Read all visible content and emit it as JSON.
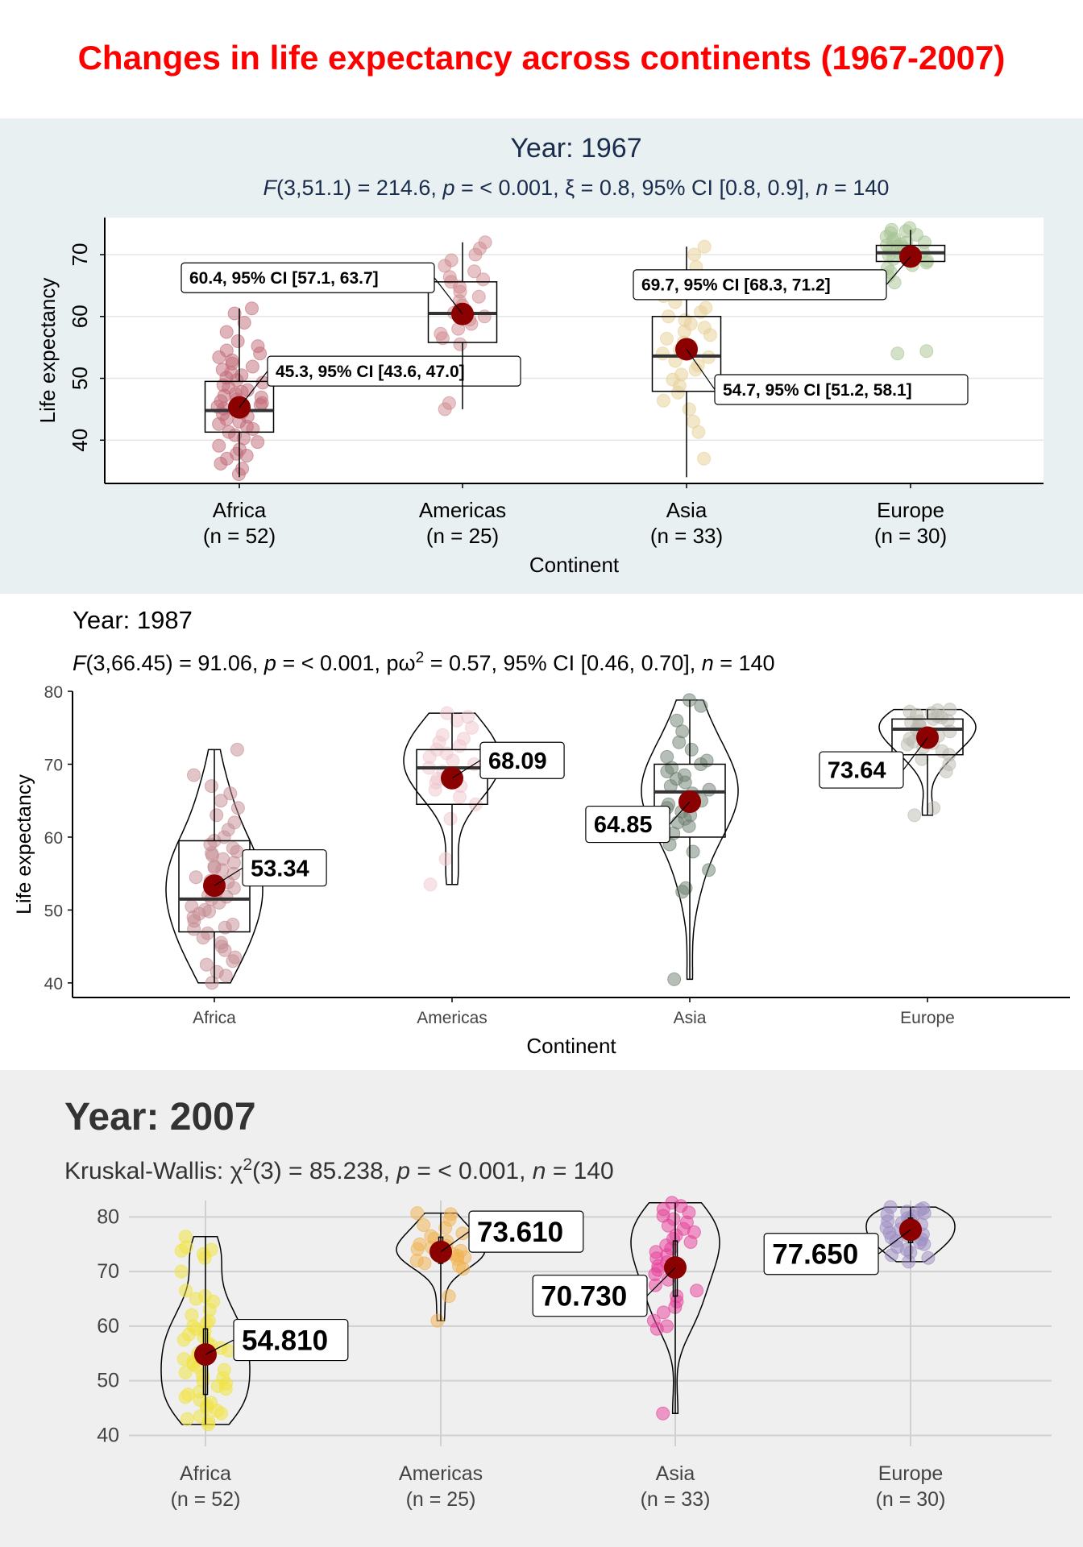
{
  "main_title": "Changes in life expectancy across continents (1967-2007)",
  "chart_data": [
    {
      "type": "box",
      "title": "Year: 1967",
      "subtitle": {
        "segments": [
          {
            "t": "F",
            "it": true
          },
          {
            "t": "(3,51.1) = 214.6, "
          },
          {
            "t": "p",
            "it": true
          },
          {
            "t": " = < 0.001, ξ = 0.8, 95% CI [0.8, 0.9], "
          },
          {
            "t": "n",
            "it": true
          },
          {
            "t": " = 140"
          }
        ]
      },
      "xlabel": "Continent",
      "ylabel": "Life expectancy",
      "ylim": [
        33,
        76
      ],
      "yticks": [
        40,
        50,
        60,
        70
      ],
      "categories": [
        "Africa",
        "Americas",
        "Asia",
        "Europe"
      ],
      "counts": [
        "(n = 52)",
        "(n = 25)",
        "(n = 33)",
        "(n = 30)"
      ],
      "point_colors": [
        "#c26a77",
        "#cf8a90",
        "#e8cf95",
        "#a7c494"
      ],
      "box": [
        {
          "min": 34,
          "q1": 41.3,
          "median": 44.8,
          "q3": 49.5,
          "max": 61.3
        },
        {
          "min": 45,
          "q1": 55.8,
          "median": 60.5,
          "q3": 65.6,
          "max": 72
        },
        {
          "min": 34,
          "q1": 47.9,
          "median": 53.6,
          "q3": 60,
          "max": 71.3
        },
        {
          "min": 68,
          "q1": 68.9,
          "median": 70.3,
          "q3": 71.5,
          "max": 74
        }
      ],
      "means": [
        45.3,
        60.4,
        54.7,
        69.7
      ],
      "mean_labels": [
        "45.3, 95% CI [43.6, 47.0]",
        "60.4, 95% CI [57.1, 63.7]",
        "54.7, 95% CI [51.2, 58.1]",
        "69.7, 95% CI [68.3, 71.2]"
      ],
      "points": [
        [
          34.5,
          35.4,
          36.2,
          37,
          37.8,
          38.5,
          39.1,
          39.7,
          40.3,
          40.8,
          41.3,
          41.8,
          42.2,
          42.6,
          43,
          43.4,
          43.8,
          44.2,
          44.5,
          44.8,
          45.1,
          45.4,
          45.7,
          46,
          46.3,
          46.6,
          46.9,
          47.2,
          47.5,
          47.8,
          48.1,
          48.5,
          48.9,
          49.3,
          49.7,
          50.1,
          50.5,
          50.9,
          51.4,
          51.9,
          52.4,
          52.9,
          53.4,
          54,
          54.5,
          55.2,
          56,
          57.5,
          59,
          60.5,
          61.3,
          37.5
        ],
        [
          45,
          46,
          55.5,
          56.5,
          57.2,
          58,
          58.8,
          59.5,
          60,
          60.6,
          61.2,
          61.8,
          62.5,
          63.2,
          64,
          64.8,
          65.6,
          66.4,
          67.3,
          68.2,
          69.1,
          70,
          71,
          72,
          66
        ],
        [
          37,
          41.3,
          43,
          45,
          46.4,
          47.7,
          48.8,
          49.8,
          50.6,
          51.4,
          52.1,
          52.8,
          53.4,
          54,
          54.6,
          55.2,
          55.8,
          56.4,
          57,
          57.6,
          58.2,
          58.8,
          59.4,
          60,
          60.7,
          61.4,
          62.3,
          63.3,
          64.5,
          66,
          68,
          70,
          71.3
        ],
        [
          54,
          54.4,
          65.5,
          66.5,
          67.2,
          67.8,
          68.3,
          68.7,
          69,
          69.3,
          69.6,
          69.9,
          70.2,
          70.5,
          70.8,
          71.1,
          71.4,
          71.7,
          72,
          72.3,
          72.6,
          72.9,
          73.2,
          73.5,
          73.8,
          74,
          74.3,
          72,
          71.5,
          70.5
        ]
      ]
    },
    {
      "type": "violin+box",
      "title": "Year: 1987",
      "subtitle": {
        "segments": [
          {
            "t": "F",
            "it": true
          },
          {
            "t": "(3,66.45) = 91.06, "
          },
          {
            "t": "p",
            "it": true
          },
          {
            "t": " = < 0.001, pω"
          },
          {
            "t": "2",
            "sup": true
          },
          {
            "t": " = 0.57, 95% CI [0.46, 0.70], "
          },
          {
            "t": "n",
            "it": true
          },
          {
            "t": " = 140"
          }
        ]
      },
      "xlabel": "Continent",
      "ylabel": "Life expectancy",
      "ylim": [
        38,
        80
      ],
      "yticks": [
        40,
        50,
        60,
        70,
        80
      ],
      "categories": [
        "Africa",
        "Americas",
        "Asia",
        "Europe"
      ],
      "point_colors": [
        "#c48c92",
        "#f0c6cd",
        "#6c7e70",
        "#bcbab0"
      ],
      "box": [
        {
          "min": 40,
          "q1": 47,
          "median": 51.5,
          "q3": 59.5,
          "max": 72
        },
        {
          "min": 53.5,
          "q1": 64.5,
          "median": 69.5,
          "q3": 72,
          "max": 77
        },
        {
          "min": 40.5,
          "q1": 60,
          "median": 66.2,
          "q3": 70,
          "max": 78.8
        },
        {
          "min": 63,
          "q1": 71.3,
          "median": 74.8,
          "q3": 76.2,
          "max": 77.5
        }
      ],
      "means": [
        53.34,
        68.09,
        64.85,
        73.64
      ],
      "mean_labels": [
        "53.34",
        "68.09",
        "64.85",
        "73.64"
      ],
      "points": [
        [
          40,
          41,
          42.5,
          43.5,
          44.5,
          45.5,
          46.2,
          46.8,
          47.4,
          48,
          48.5,
          49,
          49.5,
          50,
          50.5,
          51,
          51.5,
          52,
          52.5,
          53,
          53.5,
          54,
          54.5,
          55,
          55.5,
          56,
          56.5,
          57,
          57.5,
          58,
          58.5,
          59,
          59.5,
          60,
          61,
          62,
          63,
          64,
          65,
          66,
          67,
          68.5,
          72,
          41.5,
          45,
          49.8,
          51.8,
          53.8,
          55.8,
          57.8,
          43,
          47.6
        ],
        [
          53.5,
          57,
          62.5,
          64.5,
          65.5,
          66.5,
          67,
          67.5,
          68,
          68.5,
          69,
          69.5,
          70,
          70.5,
          71,
          71.5,
          72,
          72.5,
          73,
          73.5,
          74,
          75,
          76,
          77,
          76.5
        ],
        [
          40.5,
          52.5,
          53,
          55.5,
          58,
          59,
          60.5,
          61.5,
          62,
          62.5,
          63,
          63.5,
          64,
          64.5,
          65,
          65.5,
          66,
          66.5,
          67,
          67.5,
          68,
          68.5,
          69,
          69.5,
          70,
          70.5,
          71,
          72,
          73,
          74.5,
          76,
          78,
          78.8
        ],
        [
          63,
          64,
          69,
          70,
          70.7,
          71.3,
          71.8,
          72.3,
          72.7,
          73.1,
          73.5,
          73.9,
          74.2,
          74.5,
          74.8,
          75.1,
          75.4,
          75.7,
          76,
          76.2,
          76.4,
          76.6,
          76.8,
          77,
          77.2,
          77.4,
          77.5,
          72.9,
          74.1,
          75.9
        ]
      ]
    },
    {
      "type": "violin",
      "title": "Year: 2007",
      "subtitle": {
        "segments": [
          {
            "t": "Kruskal-Wallis: χ"
          },
          {
            "t": "2",
            "sup": true
          },
          {
            "t": "(3) = 85.238, "
          },
          {
            "t": "p",
            "it": true
          },
          {
            "t": " = < 0.001, "
          },
          {
            "t": "n",
            "it": true
          },
          {
            "t": " = 140"
          }
        ]
      },
      "xlabel": "",
      "ylabel": "",
      "ylim": [
        38,
        83
      ],
      "yticks": [
        40,
        50,
        60,
        70,
        80
      ],
      "categories": [
        "Africa",
        "Americas",
        "Asia",
        "Europe"
      ],
      "counts": [
        "(n = 52)",
        "(n = 25)",
        "(n = 33)",
        "(n = 30)"
      ],
      "point_colors": [
        "#f2e33a",
        "#f2b14d",
        "#e83e9a",
        "#9b8cc2"
      ],
      "box": [
        {
          "min": 42,
          "q1": 47.5,
          "median": 52.9,
          "q3": 59.5,
          "max": 76.4
        },
        {
          "min": 61,
          "q1": 71.5,
          "median": 72.9,
          "q3": 76.3,
          "max": 80.7
        },
        {
          "min": 44,
          "q1": 65.5,
          "median": 72.4,
          "q3": 75.6,
          "max": 82.6
        },
        {
          "min": 71.8,
          "q1": 75.3,
          "median": 78.6,
          "q3": 79.8,
          "max": 81.8
        }
      ],
      "means": [
        54.81,
        73.61,
        70.73,
        77.65
      ],
      "mean_labels": [
        "54.810",
        "73.610",
        "70.730",
        "77.650"
      ],
      "points": [
        [
          42,
          42.5,
          43,
          43.5,
          44,
          44.5,
          45,
          45.5,
          46,
          46.5,
          47,
          47.5,
          48,
          48.5,
          49,
          49.5,
          50,
          50.5,
          51,
          51.5,
          52,
          52.5,
          53,
          53.5,
          54,
          54.5,
          55,
          55.5,
          56,
          56.5,
          57,
          57.5,
          58,
          58.5,
          59,
          59.5,
          60,
          60.5,
          61,
          62,
          63,
          64.5,
          65.5,
          66.5,
          70,
          72.5,
          73.2,
          73.8,
          74,
          74.5,
          76.4,
          65
        ],
        [
          61,
          65.5,
          70.5,
          71,
          71.5,
          72,
          72.3,
          72.6,
          72.9,
          73.2,
          73.5,
          73.8,
          74.1,
          74.4,
          74.7,
          75,
          75.5,
          76,
          76.5,
          77,
          78,
          78.5,
          79.5,
          80.5,
          80.7
        ],
        [
          44,
          59.5,
          60,
          61,
          62.5,
          63.5,
          64.5,
          65.5,
          66.5,
          67.5,
          68.5,
          69.5,
          70.3,
          71,
          71.7,
          72.4,
          73,
          73.6,
          74.2,
          74.8,
          75.4,
          76,
          76.6,
          77.2,
          77.8,
          78.4,
          79,
          79.6,
          80.2,
          80.8,
          81.4,
          82,
          82.6
        ],
        [
          71.8,
          72.5,
          73,
          73.5,
          74,
          74.5,
          75,
          75.3,
          75.6,
          75.9,
          76.2,
          76.5,
          76.8,
          77.1,
          77.4,
          77.7,
          78,
          78.3,
          78.6,
          78.9,
          79.2,
          79.5,
          79.8,
          80.1,
          80.4,
          80.7,
          81,
          81.3,
          81.6,
          81.8
        ]
      ]
    }
  ]
}
